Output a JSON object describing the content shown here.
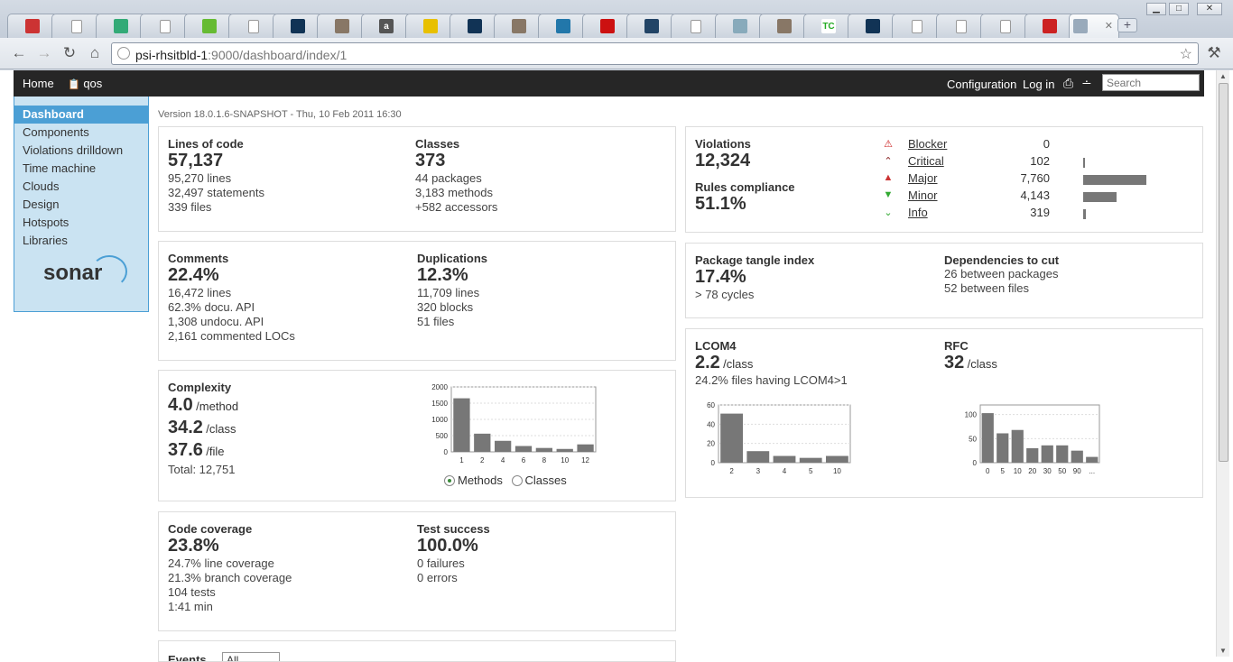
{
  "browser": {
    "url_host": "psi-rhsitbld-1",
    "url_rest": ":9000/dashboard/index/1",
    "tab_icons": [
      "gmail-icon",
      "page-icon",
      "google-icon",
      "page-icon",
      "chat-icon",
      "page-icon",
      "star-icon",
      "avatar-icon",
      "a-icon",
      "warning-icon",
      "star-icon",
      "avatar-icon",
      "chart-icon",
      "bug-icon",
      "globe-icon",
      "page-icon",
      "bird-icon",
      "avatar-icon",
      "tc-icon",
      "star-icon",
      "page-icon",
      "page-icon",
      "page-icon",
      "check-icon",
      "sonar-icon"
    ],
    "tab_letters": {
      "a": "a",
      "tc": "TC"
    },
    "tab_close": "✕",
    "new_tab": "+",
    "minimize": "▁",
    "maximize": "□",
    "close": "✕"
  },
  "header": {
    "home": "Home",
    "project": "qos",
    "configuration": "Configuration",
    "login": "Log in",
    "search_placeholder": "Search"
  },
  "sidebar": {
    "items": [
      "Dashboard",
      "Components",
      "Violations drilldown",
      "Time machine",
      "Clouds",
      "Design",
      "Hotspots",
      "Libraries"
    ],
    "logo": "sonar"
  },
  "version": "Version 18.0.1.6-SNAPSHOT - Thu, 10 Feb 2011 16:30",
  "size": {
    "loc_title": "Lines of code",
    "loc_value": "57,137",
    "loc_lines": [
      "95,270 lines",
      "32,497 statements",
      "339 files"
    ],
    "classes_title": "Classes",
    "classes_value": "373",
    "classes_lines": [
      "44 packages",
      "3,183 methods",
      "+582 accessors"
    ]
  },
  "comments": {
    "title": "Comments",
    "value": "22.4%",
    "lines": [
      "16,472 lines",
      "62.3% docu. API",
      "1,308 undocu. API",
      "2,161 commented LOCs"
    ],
    "dup_title": "Duplications",
    "dup_value": "12.3%",
    "dup_lines": [
      "11,709 lines",
      "320 blocks",
      "51 files"
    ]
  },
  "complexity": {
    "title": "Complexity",
    "method_value": "4.0",
    "method_unit": "/method",
    "class_value": "34.2",
    "class_unit": "/class",
    "file_value": "37.6",
    "file_unit": "/file",
    "total": "Total: 12,751",
    "radio_methods": "Methods",
    "radio_classes": "Classes"
  },
  "coverage": {
    "title": "Code coverage",
    "value": "23.8%",
    "lines": [
      "24.7% line coverage",
      "21.3% branch coverage",
      "104 tests",
      "1:41 min"
    ],
    "test_title": "Test success",
    "test_value": "100.0%",
    "test_lines": [
      "0 failures",
      "0 errors"
    ]
  },
  "events": {
    "title": "Events",
    "select": "All"
  },
  "violations": {
    "title": "Violations",
    "value": "12,324",
    "rules_title": "Rules compliance",
    "rules_value": "51.1%",
    "rows": [
      {
        "label": "Blocker",
        "count": "0",
        "value": 0,
        "icon": "blocker-icon",
        "color": "#cc2222"
      },
      {
        "label": "Critical",
        "count": "102",
        "value": 102,
        "icon": "critical-icon",
        "color": "#882222"
      },
      {
        "label": "Major",
        "count": "7,760",
        "value": 7760,
        "icon": "major-icon",
        "color": "#cc3333"
      },
      {
        "label": "Minor",
        "count": "4,143",
        "value": 4143,
        "icon": "minor-icon",
        "color": "#33aa33"
      },
      {
        "label": "Info",
        "count": "319",
        "value": 319,
        "icon": "info-icon",
        "color": "#33aa33"
      }
    ],
    "bar_max": 7760
  },
  "design": {
    "tangle_title": "Package tangle index",
    "tangle_value": "17.4%",
    "tangle_cycles": "> 78 cycles",
    "deps_title": "Dependencies to cut",
    "deps_lines": [
      "26 between packages",
      "52 between files"
    ]
  },
  "lcom": {
    "title": "LCOM4",
    "value": "2.2",
    "unit": "/class",
    "note": "24.2% files having LCOM4>1",
    "rfc_title": "RFC",
    "rfc_value": "32",
    "rfc_unit": "/class"
  },
  "chart_data": [
    {
      "type": "bar",
      "categories": [
        "1",
        "2",
        "4",
        "6",
        "8",
        "10",
        "12"
      ],
      "values": [
        1650,
        560,
        340,
        180,
        120,
        90,
        230
      ],
      "ylim": [
        0,
        2000
      ],
      "yticks": [
        "0",
        "500",
        "1000",
        "1500",
        "2000"
      ],
      "ytick_values": [
        0,
        500,
        1000,
        1500,
        2000
      ]
    },
    {
      "type": "bar",
      "categories": [
        "2",
        "3",
        "4",
        "5",
        "10"
      ],
      "values": [
        51,
        12,
        7,
        5,
        7
      ],
      "ylim": [
        0,
        60
      ],
      "yticks": [
        "0",
        "20",
        "40",
        "60"
      ],
      "ytick_values": [
        0,
        20,
        40,
        60
      ]
    },
    {
      "type": "bar",
      "categories": [
        "0",
        "5",
        "10",
        "20",
        "30",
        "50",
        "90",
        "..."
      ],
      "values": [
        103,
        61,
        68,
        30,
        36,
        36,
        25,
        12
      ],
      "ylim": [
        0,
        120
      ],
      "yticks": [
        "0",
        "50",
        "100"
      ],
      "ytick_values": [
        0,
        50,
        100
      ]
    }
  ]
}
